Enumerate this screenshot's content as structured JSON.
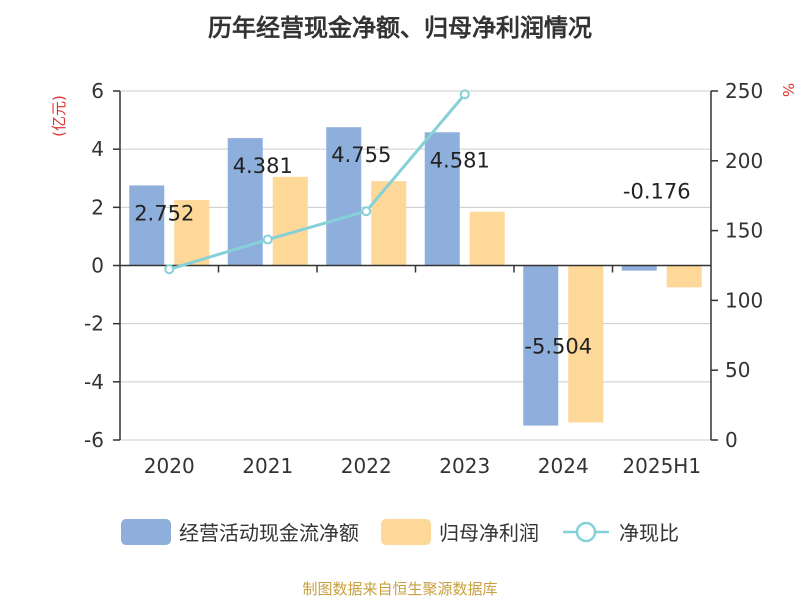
{
  "title": "历年经营现金净额、归母净利润情况",
  "source": "制图数据来自恒生聚源数据库",
  "chart_data": {
    "type": "bar",
    "categories": [
      "2020",
      "2021",
      "2022",
      "2023",
      "2024",
      "2025H1"
    ],
    "series": [
      {
        "name": "经营活动现金流净额",
        "type": "bar",
        "axis": "left",
        "color": "#8eaedb",
        "values": [
          2.752,
          4.381,
          4.755,
          4.581,
          -5.504,
          -0.176
        ],
        "labels": [
          "2.752",
          "4.381",
          "4.755",
          "4.581",
          "-5.504",
          "-0.176"
        ]
      },
      {
        "name": "归母净利润",
        "type": "bar",
        "axis": "left",
        "color": "#fdd898",
        "values": [
          2.25,
          3.05,
          2.9,
          1.85,
          -5.4,
          -0.75
        ]
      },
      {
        "name": "净现比",
        "type": "line",
        "axis": "right",
        "color": "#86d0d8",
        "values": [
          122.3,
          143.6,
          163.9,
          247.6,
          null,
          null
        ]
      }
    ],
    "left_axis": {
      "unit": "(亿元)",
      "min": -6,
      "max": 6,
      "ticks": [
        -6,
        -4,
        -2,
        0,
        2,
        4,
        6
      ]
    },
    "right_axis": {
      "unit": "%",
      "min": 0,
      "max": 250,
      "ticks": [
        0,
        50,
        100,
        150,
        200,
        250
      ]
    },
    "grid": true,
    "legend_position": "bottom"
  }
}
